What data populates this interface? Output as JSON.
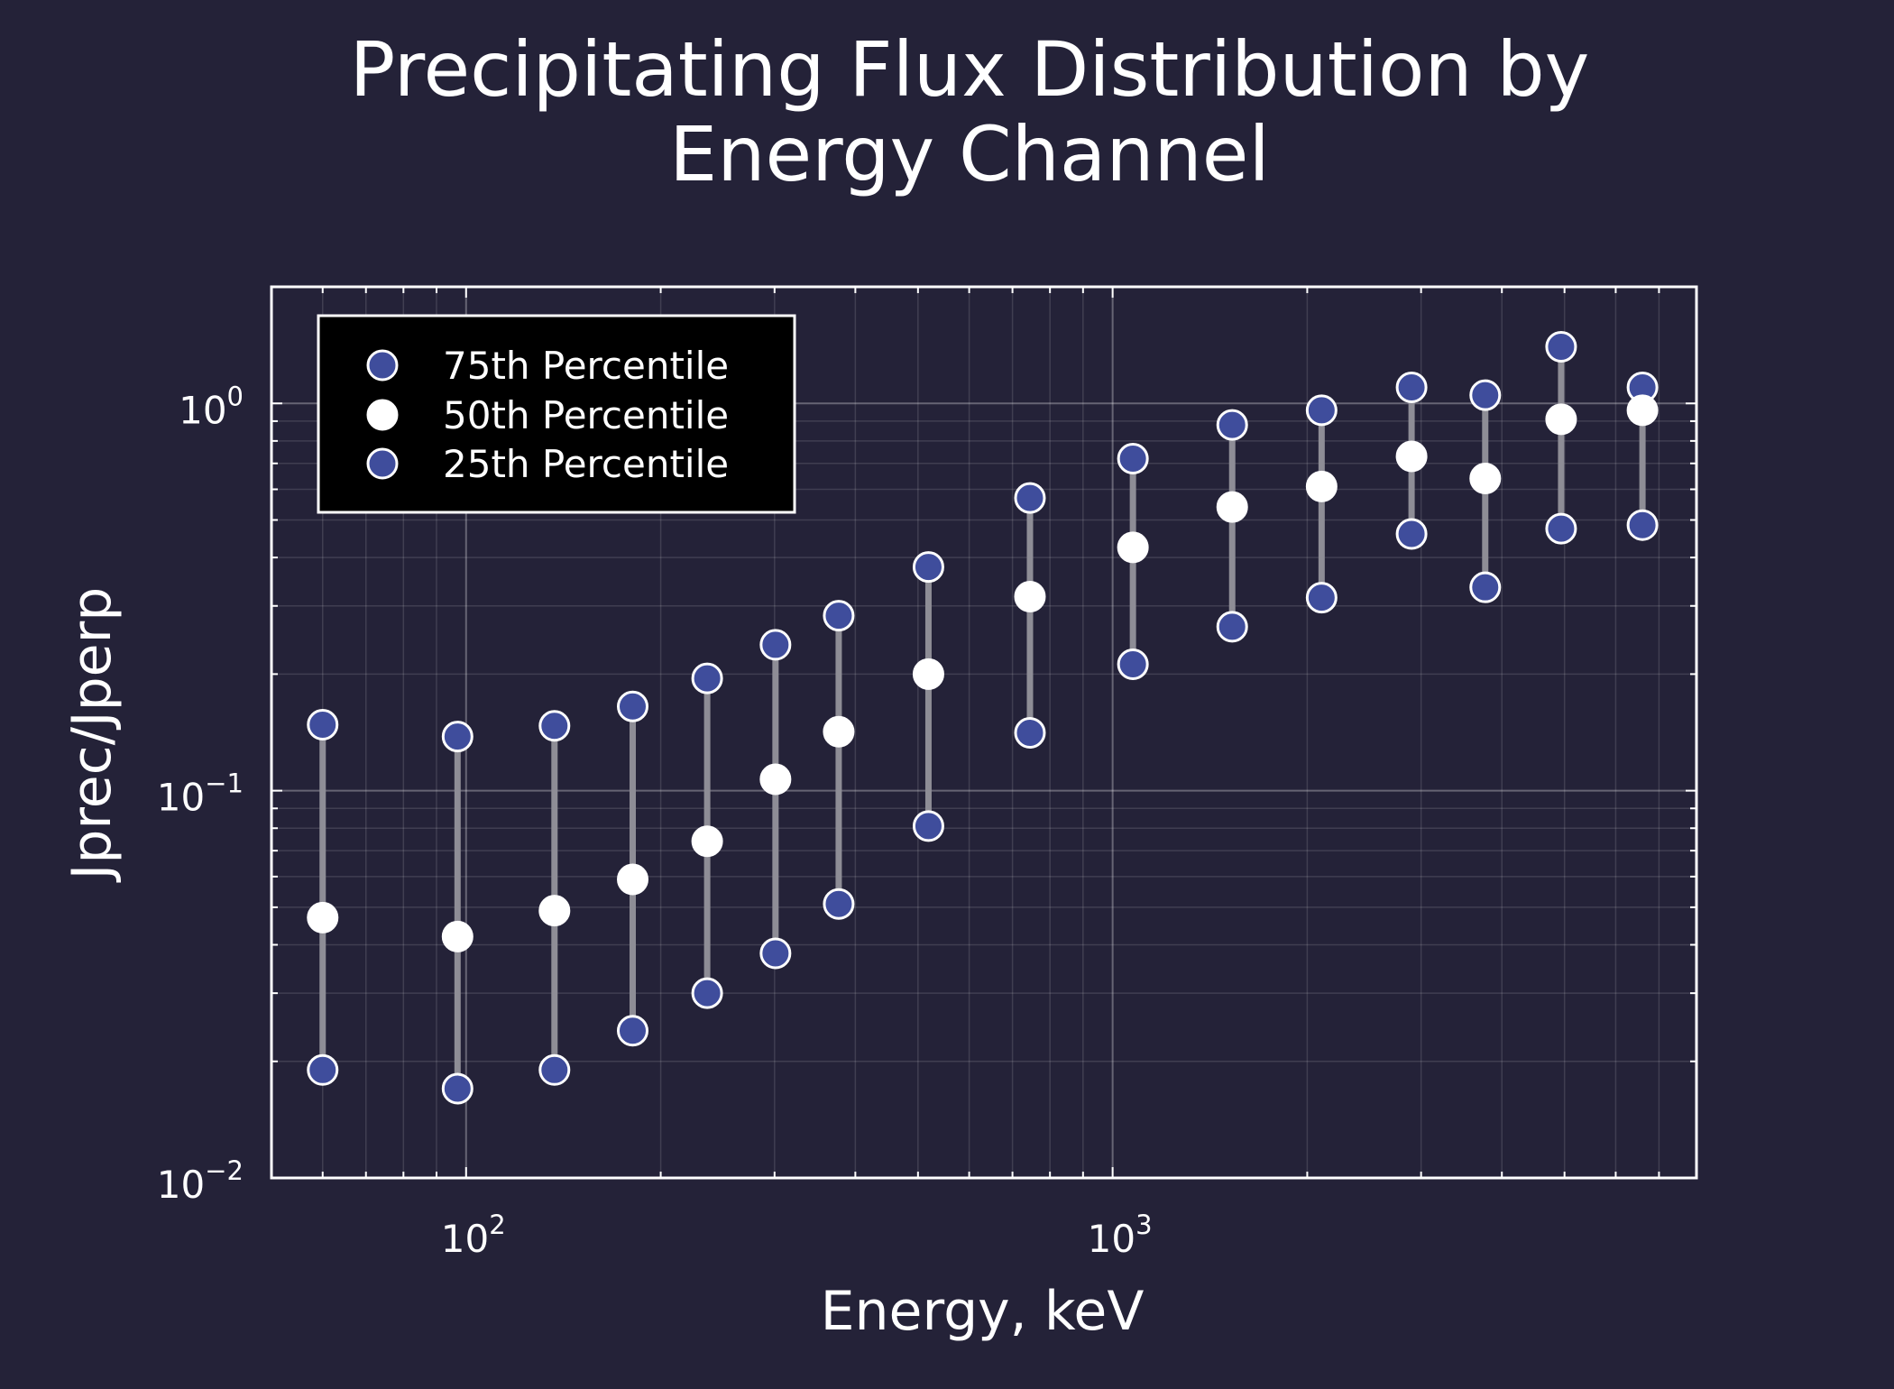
{
  "chart_data": {
    "type": "scatter",
    "title_lines": [
      "Precipitating Flux Distribution by",
      "Energy Channel"
    ],
    "xlabel": "Energy, keV",
    "ylabel": "Jprec/Jperp",
    "xscale": "log",
    "yscale": "log",
    "xlim": [
      50,
      8000
    ],
    "ylim": [
      0.01,
      2.0
    ],
    "x_ticks": [
      {
        "base": "10",
        "exp": "2",
        "value": 100
      },
      {
        "base": "10",
        "exp": "3",
        "value": 1000
      }
    ],
    "y_ticks": [
      {
        "base": "10",
        "exp": "−2",
        "value": 0.01
      },
      {
        "base": "10",
        "exp": "−1",
        "value": 0.1
      },
      {
        "base": "10",
        "exp": "0",
        "value": 1
      }
    ],
    "grid": true,
    "legend_position": "top-left",
    "x": [
      60,
      97,
      137,
      181,
      236,
      301,
      377,
      519,
      745,
      1075,
      1531,
      2105,
      2900,
      3770,
      4940,
      6600
    ],
    "series": [
      {
        "name": "75th Percentile",
        "color": "#3f4d9c",
        "edge": "#ffffff",
        "values": [
          0.148,
          0.138,
          0.147,
          0.165,
          0.195,
          0.238,
          0.283,
          0.378,
          0.57,
          0.72,
          0.88,
          0.96,
          1.1,
          1.05,
          1.4,
          1.1
        ]
      },
      {
        "name": "50th Percentile",
        "color": "#ffffff",
        "edge": "#ffffff",
        "values": [
          0.047,
          0.042,
          0.049,
          0.059,
          0.074,
          0.107,
          0.142,
          0.2,
          0.317,
          0.425,
          0.54,
          0.61,
          0.73,
          0.64,
          0.91,
          0.96
        ]
      },
      {
        "name": "25th Percentile",
        "color": "#3f4d9c",
        "edge": "#ffffff",
        "values": [
          0.019,
          0.017,
          0.019,
          0.024,
          0.03,
          0.038,
          0.051,
          0.081,
          0.141,
          0.212,
          0.265,
          0.315,
          0.46,
          0.335,
          0.475,
          0.485
        ]
      }
    ],
    "colors": {
      "background": "#242238",
      "axes": "#ffffff",
      "grid": "#ffffff",
      "range_bar": "#8e8d96",
      "legend_bg": "#000000"
    }
  }
}
